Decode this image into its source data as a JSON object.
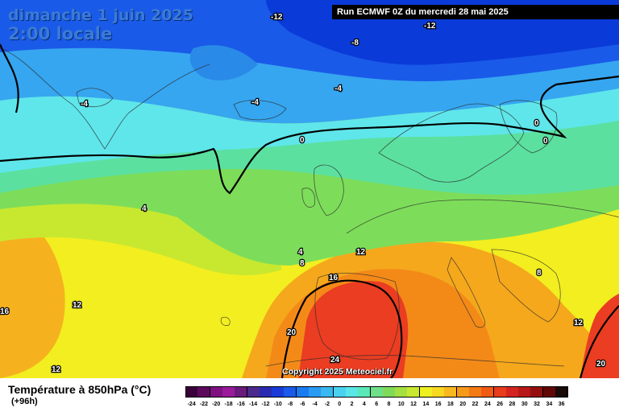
{
  "header": {
    "date_line1": "dimanche 1 juin 2025",
    "date_line2": "2:00 locale",
    "run_info": "Run ECMWF 0Z du mercredi 28 mai 2025"
  },
  "map": {
    "copyright": "Copyright 2025 Meteociel.fr",
    "isotherm_labels": [
      "-12",
      "-12",
      "-8",
      "-4",
      "-4",
      "-4",
      "0",
      "0",
      "0",
      "4",
      "4",
      "8",
      "8",
      "12",
      "12",
      "12",
      "12",
      "16",
      "16",
      "20",
      "20",
      "24"
    ],
    "colors": {
      "deep_cold": "#0a3ad8",
      "cold": "#36a6f0",
      "cool": "#5fe6ea",
      "mild": "#7ddd5a",
      "warm": "#f2ee20",
      "hot": "#f38a18",
      "very_hot": "#ea3d22"
    }
  },
  "legend": {
    "title": "Température à 850hPa (°C)",
    "subtitle": "(+96h)",
    "ticks": [
      "-24",
      "-22",
      "-20",
      "-18",
      "-16",
      "-14",
      "-12",
      "-10",
      "-8",
      "-6",
      "-4",
      "-2",
      "0",
      "2",
      "4",
      "6",
      "8",
      "10",
      "12",
      "14",
      "16",
      "18",
      "20",
      "22",
      "24",
      "26",
      "28",
      "30",
      "32",
      "34",
      "36"
    ],
    "swatch_colors": [
      "#3a003a",
      "#5c0a5c",
      "#801080",
      "#9a1a9a",
      "#6a1a7a",
      "#4a2a8a",
      "#2a2ab0",
      "#1a3ad8",
      "#1a5ae8",
      "#1a7af0",
      "#2a9af2",
      "#3ab8f2",
      "#4ad2f0",
      "#5ae6e6",
      "#5ae8b8",
      "#6ee08a",
      "#80da5a",
      "#a4e040",
      "#c8e830",
      "#eef020",
      "#f8d820",
      "#f8b820",
      "#f69a1a",
      "#f47a16",
      "#f05a14",
      "#e83c1c",
      "#d42420",
      "#b81818",
      "#941010",
      "#600808",
      "#1a0a0a"
    ]
  }
}
